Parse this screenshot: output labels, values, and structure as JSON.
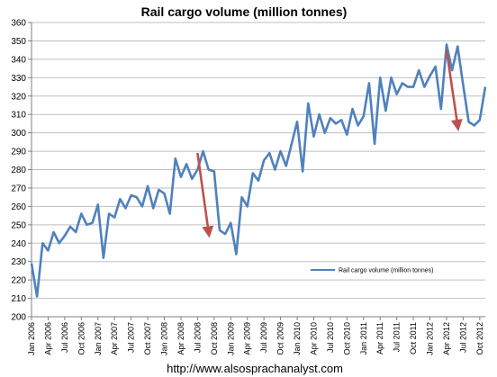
{
  "chart_data": {
    "type": "line",
    "title": "Rail cargo volume (million tonnes)",
    "xlabel": "",
    "ylabel": "",
    "ylim": [
      200,
      360
    ],
    "yticks": [
      200,
      210,
      220,
      230,
      240,
      250,
      260,
      270,
      280,
      290,
      300,
      310,
      320,
      330,
      340,
      350,
      360
    ],
    "grid": true,
    "legend": "center-right",
    "tick_labels": [
      "Jan 2006",
      "Apr 2006",
      "Jul 2006",
      "Oct 2006",
      "Jan 2007",
      "Apr 2007",
      "Jul 2007",
      "Oct 2007",
      "Jan 2008",
      "Apr 2008",
      "Jul 2008",
      "Oct 2008",
      "Jan 2009",
      "Apr 2009",
      "Jul 2009",
      "Oct 2009",
      "Jan 2010",
      "Apr 2010",
      "Jul 2010",
      "Oct 2010",
      "Jan 2011",
      "Apr 2011",
      "Jul 2011",
      "Oct 2011",
      "Jan 2012",
      "Apr 2012",
      "Jul 2012",
      "Oct 2012"
    ],
    "series": [
      {
        "name": "Rail cargo volume (million tonnes)",
        "color": "#4f81bd",
        "values": [
          229,
          211,
          240,
          236,
          246,
          240,
          244,
          249,
          246,
          256,
          250,
          251,
          261,
          232,
          256,
          254,
          264,
          259,
          266,
          265,
          260,
          271,
          259,
          269,
          267,
          256,
          286,
          276,
          283,
          275,
          280,
          290,
          280,
          279,
          247,
          245,
          251,
          234,
          265,
          260,
          278,
          274,
          285,
          289,
          280,
          290,
          282,
          294,
          306,
          279,
          316,
          298,
          310,
          300,
          308,
          305,
          307,
          299,
          313,
          304,
          309,
          327,
          294,
          330,
          312,
          330,
          321,
          327,
          325,
          325,
          334,
          325,
          331,
          336,
          313,
          348,
          334,
          347,
          326,
          306,
          304,
          307,
          325
        ]
      }
    ],
    "annotations": [
      {
        "type": "arrow",
        "color": "#c0504d",
        "from": {
          "x": "Jul 2008",
          "y": 289
        },
        "to": {
          "x": "Sep 2008",
          "y": 246
        }
      },
      {
        "type": "arrow",
        "color": "#c0504d",
        "from": {
          "x": "Apr 2012",
          "y": 345
        },
        "to": {
          "x": "Jun 2012",
          "y": 304
        }
      }
    ]
  },
  "footer": "http://www.alsosprachanalyst.com"
}
